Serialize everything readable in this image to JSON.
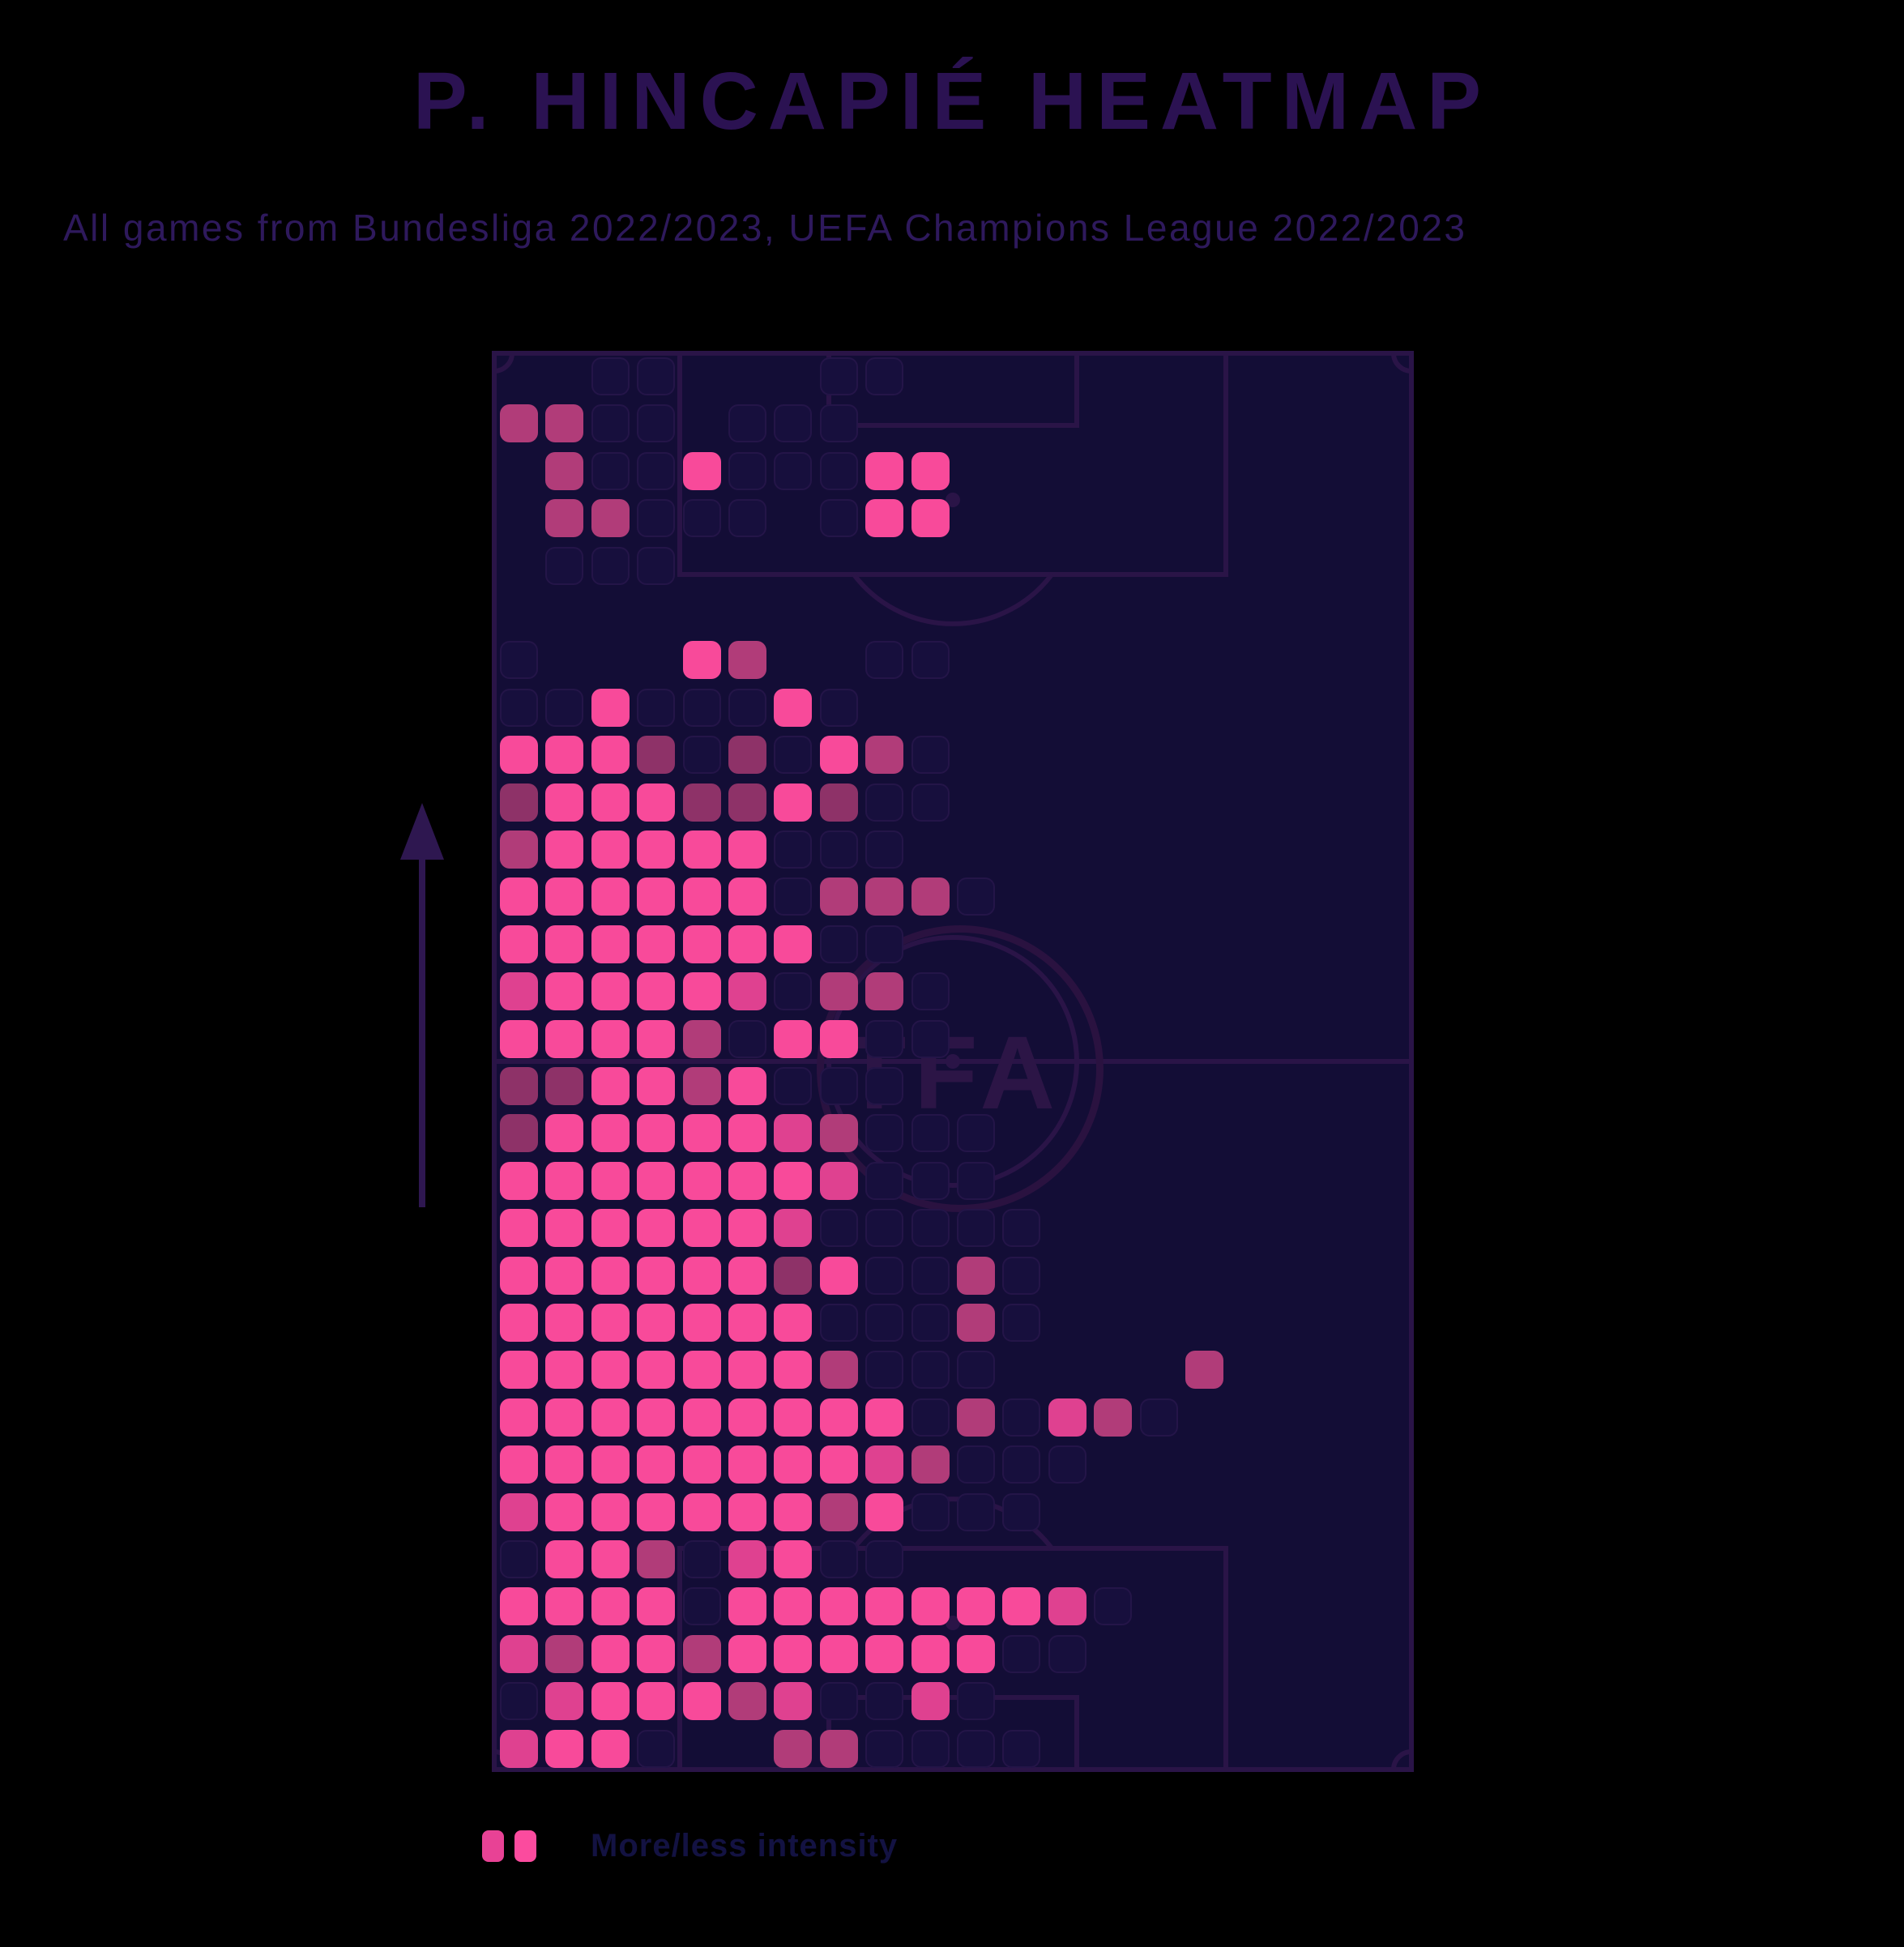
{
  "title": "P. HINCAPIÉ HEATMAP",
  "subtitle": "All games from Bundesliga 2022/2023, UEFA Champions League 2022/2023",
  "watermark_text": "TFA",
  "legend": {
    "caption": "More/less intensity",
    "square_colors": [
      "#e84295",
      "#fb4b9e"
    ]
  },
  "colors": {
    "css": {
      "title": "#2b1252",
      "subtitle": "#2e195c",
      "pitch-bg": "#130d36",
      "pitch-line": "#2a1447",
      "arrow": "#2e1750",
      "watermark": "#2c1546",
      "watermark-line": "#2a1240",
      "caption": "#131242",
      "ghost-fill": "#170f3d",
      "ghost-stroke": "#241548"
    },
    "heat_levels": [
      "",
      "#8e3268",
      "#b13c79",
      "#df4190",
      "#f84a9a"
    ]
  },
  "chart_data": {
    "type": "heatmap",
    "title": "P. Hincapié heatmap",
    "competitions": [
      "Bundesliga 2022/2023",
      "UEFA Champions League 2022/2023"
    ],
    "pitch": "vertical football pitch, defending goal at bottom",
    "attack_direction": "up",
    "legend_note": "intensity levels 1 (low, dark mauve) to 4 (high, hot pink); 0 = faint empty bin outline",
    "grid": {
      "cols": 20,
      "rows": 30
    },
    "cells": [
      [
        0,
        1,
        2
      ],
      [
        1,
        1,
        2
      ],
      [
        1,
        2,
        2
      ],
      [
        4,
        2,
        4
      ],
      [
        8,
        2,
        4
      ],
      [
        9,
        2,
        4
      ],
      [
        1,
        3,
        2
      ],
      [
        2,
        3,
        2
      ],
      [
        8,
        3,
        4
      ],
      [
        9,
        3,
        4
      ],
      [
        4,
        6,
        4
      ],
      [
        5,
        6,
        2
      ],
      [
        2,
        7,
        4
      ],
      [
        6,
        7,
        4
      ],
      [
        0,
        8,
        4
      ],
      [
        1,
        8,
        4
      ],
      [
        2,
        8,
        4
      ],
      [
        3,
        8,
        1
      ],
      [
        5,
        8,
        1
      ],
      [
        7,
        8,
        4
      ],
      [
        8,
        8,
        2
      ],
      [
        0,
        9,
        1
      ],
      [
        1,
        9,
        4
      ],
      [
        2,
        9,
        4
      ],
      [
        3,
        9,
        4
      ],
      [
        4,
        9,
        1
      ],
      [
        5,
        9,
        1
      ],
      [
        6,
        9,
        4
      ],
      [
        7,
        9,
        1
      ],
      [
        0,
        10,
        2
      ],
      [
        1,
        10,
        4
      ],
      [
        2,
        10,
        4
      ],
      [
        3,
        10,
        4
      ],
      [
        4,
        10,
        4
      ],
      [
        5,
        10,
        4
      ],
      [
        0,
        11,
        4
      ],
      [
        1,
        11,
        4
      ],
      [
        2,
        11,
        4
      ],
      [
        3,
        11,
        4
      ],
      [
        4,
        11,
        4
      ],
      [
        5,
        11,
        4
      ],
      [
        7,
        11,
        2
      ],
      [
        8,
        11,
        2
      ],
      [
        9,
        11,
        2
      ],
      [
        0,
        12,
        4
      ],
      [
        1,
        12,
        4
      ],
      [
        2,
        12,
        4
      ],
      [
        3,
        12,
        4
      ],
      [
        4,
        12,
        4
      ],
      [
        5,
        12,
        4
      ],
      [
        6,
        12,
        4
      ],
      [
        0,
        13,
        3
      ],
      [
        1,
        13,
        4
      ],
      [
        2,
        13,
        4
      ],
      [
        3,
        13,
        4
      ],
      [
        4,
        13,
        4
      ],
      [
        5,
        13,
        3
      ],
      [
        7,
        13,
        2
      ],
      [
        8,
        13,
        2
      ],
      [
        0,
        14,
        4
      ],
      [
        1,
        14,
        4
      ],
      [
        2,
        14,
        4
      ],
      [
        3,
        14,
        4
      ],
      [
        4,
        14,
        2
      ],
      [
        6,
        14,
        4
      ],
      [
        7,
        14,
        4
      ],
      [
        0,
        15,
        1
      ],
      [
        1,
        15,
        1
      ],
      [
        2,
        15,
        4
      ],
      [
        3,
        15,
        4
      ],
      [
        4,
        15,
        2
      ],
      [
        5,
        15,
        4
      ],
      [
        0,
        16,
        1
      ],
      [
        1,
        16,
        4
      ],
      [
        2,
        16,
        4
      ],
      [
        3,
        16,
        4
      ],
      [
        4,
        16,
        4
      ],
      [
        5,
        16,
        4
      ],
      [
        6,
        16,
        3
      ],
      [
        7,
        16,
        2
      ],
      [
        0,
        17,
        4
      ],
      [
        1,
        17,
        4
      ],
      [
        2,
        17,
        4
      ],
      [
        3,
        17,
        4
      ],
      [
        4,
        17,
        4
      ],
      [
        5,
        17,
        4
      ],
      [
        6,
        17,
        4
      ],
      [
        7,
        17,
        3
      ],
      [
        0,
        18,
        4
      ],
      [
        1,
        18,
        4
      ],
      [
        2,
        18,
        4
      ],
      [
        3,
        18,
        4
      ],
      [
        4,
        18,
        4
      ],
      [
        5,
        18,
        4
      ],
      [
        6,
        18,
        3
      ],
      [
        0,
        19,
        4
      ],
      [
        1,
        19,
        4
      ],
      [
        2,
        19,
        4
      ],
      [
        3,
        19,
        4
      ],
      [
        4,
        19,
        4
      ],
      [
        5,
        19,
        4
      ],
      [
        6,
        19,
        1
      ],
      [
        7,
        19,
        4
      ],
      [
        10,
        19,
        2
      ],
      [
        0,
        20,
        4
      ],
      [
        1,
        20,
        4
      ],
      [
        2,
        20,
        4
      ],
      [
        3,
        20,
        4
      ],
      [
        4,
        20,
        4
      ],
      [
        5,
        20,
        4
      ],
      [
        6,
        20,
        4
      ],
      [
        10,
        20,
        2
      ],
      [
        0,
        21,
        4
      ],
      [
        1,
        21,
        4
      ],
      [
        2,
        21,
        4
      ],
      [
        3,
        21,
        4
      ],
      [
        4,
        21,
        4
      ],
      [
        5,
        21,
        4
      ],
      [
        6,
        21,
        4
      ],
      [
        7,
        21,
        2
      ],
      [
        15,
        21,
        2
      ],
      [
        0,
        22,
        4
      ],
      [
        1,
        22,
        4
      ],
      [
        2,
        22,
        4
      ],
      [
        3,
        22,
        4
      ],
      [
        4,
        22,
        4
      ],
      [
        5,
        22,
        4
      ],
      [
        6,
        22,
        4
      ],
      [
        7,
        22,
        4
      ],
      [
        8,
        22,
        4
      ],
      [
        10,
        22,
        2
      ],
      [
        12,
        22,
        3
      ],
      [
        13,
        22,
        2
      ],
      [
        0,
        23,
        4
      ],
      [
        1,
        23,
        4
      ],
      [
        2,
        23,
        4
      ],
      [
        3,
        23,
        4
      ],
      [
        4,
        23,
        4
      ],
      [
        5,
        23,
        4
      ],
      [
        6,
        23,
        4
      ],
      [
        7,
        23,
        4
      ],
      [
        8,
        23,
        3
      ],
      [
        9,
        23,
        2
      ],
      [
        0,
        24,
        3
      ],
      [
        1,
        24,
        4
      ],
      [
        2,
        24,
        4
      ],
      [
        3,
        24,
        4
      ],
      [
        4,
        24,
        4
      ],
      [
        5,
        24,
        4
      ],
      [
        6,
        24,
        4
      ],
      [
        7,
        24,
        2
      ],
      [
        8,
        24,
        4
      ],
      [
        1,
        25,
        4
      ],
      [
        2,
        25,
        4
      ],
      [
        3,
        25,
        2
      ],
      [
        5,
        25,
        3
      ],
      [
        6,
        25,
        4
      ],
      [
        0,
        26,
        4
      ],
      [
        1,
        26,
        4
      ],
      [
        2,
        26,
        4
      ],
      [
        3,
        26,
        4
      ],
      [
        5,
        26,
        4
      ],
      [
        6,
        26,
        4
      ],
      [
        7,
        26,
        4
      ],
      [
        8,
        26,
        4
      ],
      [
        9,
        26,
        4
      ],
      [
        10,
        26,
        4
      ],
      [
        11,
        26,
        4
      ],
      [
        12,
        26,
        3
      ],
      [
        0,
        27,
        3
      ],
      [
        1,
        27,
        2
      ],
      [
        2,
        27,
        4
      ],
      [
        3,
        27,
        4
      ],
      [
        4,
        27,
        2
      ],
      [
        5,
        27,
        4
      ],
      [
        6,
        27,
        4
      ],
      [
        7,
        27,
        4
      ],
      [
        8,
        27,
        4
      ],
      [
        9,
        27,
        4
      ],
      [
        10,
        27,
        4
      ],
      [
        1,
        28,
        3
      ],
      [
        2,
        28,
        4
      ],
      [
        3,
        28,
        4
      ],
      [
        4,
        28,
        4
      ],
      [
        5,
        28,
        2
      ],
      [
        6,
        28,
        3
      ],
      [
        9,
        28,
        3
      ],
      [
        0,
        29,
        3
      ],
      [
        1,
        29,
        4
      ],
      [
        2,
        29,
        4
      ],
      [
        6,
        29,
        2
      ],
      [
        7,
        29,
        2
      ]
    ],
    "ghost_cells": [
      [
        2,
        0
      ],
      [
        3,
        0
      ],
      [
        7,
        0
      ],
      [
        8,
        0
      ],
      [
        2,
        1
      ],
      [
        3,
        1
      ],
      [
        5,
        1
      ],
      [
        6,
        1
      ],
      [
        7,
        1
      ],
      [
        2,
        2
      ],
      [
        3,
        2
      ],
      [
        5,
        2
      ],
      [
        6,
        2
      ],
      [
        7,
        2
      ],
      [
        3,
        3
      ],
      [
        4,
        3
      ],
      [
        5,
        3
      ],
      [
        7,
        3
      ],
      [
        1,
        4
      ],
      [
        2,
        4
      ],
      [
        3,
        4
      ],
      [
        0,
        6
      ],
      [
        8,
        6
      ],
      [
        9,
        6
      ],
      [
        0,
        7
      ],
      [
        1,
        7
      ],
      [
        3,
        7
      ],
      [
        4,
        7
      ],
      [
        5,
        7
      ],
      [
        7,
        7
      ],
      [
        4,
        8
      ],
      [
        6,
        8
      ],
      [
        9,
        8
      ],
      [
        8,
        9
      ],
      [
        9,
        9
      ],
      [
        6,
        10
      ],
      [
        7,
        10
      ],
      [
        8,
        10
      ],
      [
        6,
        11
      ],
      [
        10,
        11
      ],
      [
        7,
        12
      ],
      [
        8,
        12
      ],
      [
        6,
        13
      ],
      [
        9,
        13
      ],
      [
        5,
        14
      ],
      [
        8,
        14
      ],
      [
        9,
        14
      ],
      [
        6,
        15
      ],
      [
        7,
        15
      ],
      [
        8,
        15
      ],
      [
        8,
        16
      ],
      [
        9,
        16
      ],
      [
        10,
        16
      ],
      [
        8,
        17
      ],
      [
        9,
        17
      ],
      [
        10,
        17
      ],
      [
        7,
        18
      ],
      [
        8,
        18
      ],
      [
        9,
        18
      ],
      [
        10,
        18
      ],
      [
        11,
        18
      ],
      [
        8,
        19
      ],
      [
        9,
        19
      ],
      [
        11,
        19
      ],
      [
        7,
        20
      ],
      [
        8,
        20
      ],
      [
        9,
        20
      ],
      [
        11,
        20
      ],
      [
        8,
        21
      ],
      [
        9,
        21
      ],
      [
        10,
        21
      ],
      [
        9,
        22
      ],
      [
        11,
        22
      ],
      [
        14,
        22
      ],
      [
        10,
        23
      ],
      [
        11,
        23
      ],
      [
        12,
        23
      ],
      [
        9,
        24
      ],
      [
        10,
        24
      ],
      [
        11,
        24
      ],
      [
        0,
        25
      ],
      [
        4,
        25
      ],
      [
        7,
        25
      ],
      [
        8,
        25
      ],
      [
        4,
        26
      ],
      [
        13,
        26
      ],
      [
        11,
        27
      ],
      [
        12,
        27
      ],
      [
        0,
        28
      ],
      [
        7,
        28
      ],
      [
        8,
        28
      ],
      [
        10,
        28
      ],
      [
        3,
        29
      ],
      [
        8,
        29
      ],
      [
        9,
        29
      ],
      [
        10,
        29
      ],
      [
        11,
        29
      ]
    ]
  }
}
